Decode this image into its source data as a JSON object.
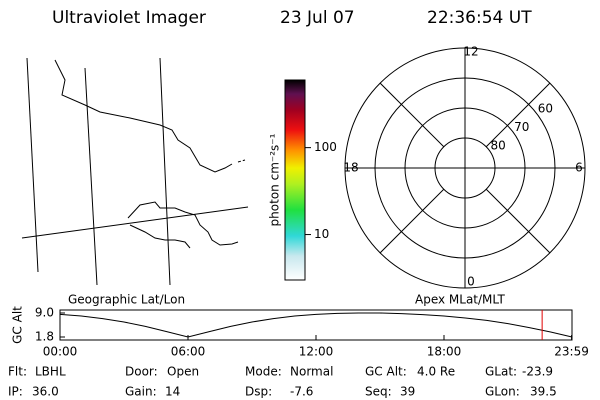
{
  "header": {
    "title": "Ultraviolet Imager",
    "date": "23 Jul 07",
    "time": "22:36:54 UT"
  },
  "colorbar": {
    "label": "photon cm⁻²s⁻¹",
    "log": true,
    "lim": [
      3,
      600
    ],
    "ticks": [
      10,
      100
    ]
  },
  "map": {
    "label": "Geographic Lat/Lon"
  },
  "polar": {
    "label": "Apex MLat/MLT",
    "mlt_labels": [
      12,
      18,
      6,
      0
    ],
    "lat_labels": [
      60,
      70,
      80
    ]
  },
  "altitude": {
    "label": "GC Alt",
    "ylim": [
      1.8,
      9.0
    ],
    "yticks": [
      {
        "value": 9.0,
        "label": "9.0"
      },
      1.8
    ],
    "xlim": [
      0,
      24
    ],
    "xticks": [
      {
        "value": 0,
        "label": "00:00"
      },
      {
        "value": 6,
        "label": "06:00"
      },
      {
        "value": 12,
        "label": "12:00"
      },
      {
        "value": 18,
        "label": "18:00"
      },
      {
        "value": 23.98,
        "label": "23:59"
      }
    ],
    "x": [
      0,
      1,
      2,
      3,
      4,
      5,
      6,
      7,
      8,
      9,
      10,
      11,
      12,
      13,
      14,
      15,
      16,
      17,
      18,
      19,
      20,
      21,
      22,
      23,
      24
    ],
    "values": [
      8.6,
      8.1,
      7.3,
      6.3,
      5.0,
      3.4,
      1.8,
      3.4,
      5.0,
      6.3,
      7.3,
      8.1,
      8.6,
      8.9,
      9.0,
      9.0,
      8.8,
      8.5,
      8.1,
      7.5,
      6.8,
      5.8,
      4.6,
      3.3,
      1.8
    ],
    "marker": 22.6,
    "marker_color": "#e00000"
  },
  "status": [
    [
      {
        "label": "Flt:",
        "value": "LBHL"
      },
      {
        "label": "Door:",
        "value": "Open"
      },
      {
        "label": "Mode:",
        "value": "Normal"
      },
      {
        "label": "GC Alt:",
        "value": "4.0 Re"
      },
      {
        "label": "GLat:",
        "value": "-23.9"
      }
    ],
    [
      {
        "label": "IP:",
        "value": "36.0"
      },
      {
        "label": "Gain:",
        "value": "14"
      },
      {
        "label": "Dsp:",
        "value": "-7.6"
      },
      {
        "label": "Seq:",
        "value": "39"
      },
      {
        "label": "GLon:",
        "value": "39.5"
      }
    ]
  ]
}
